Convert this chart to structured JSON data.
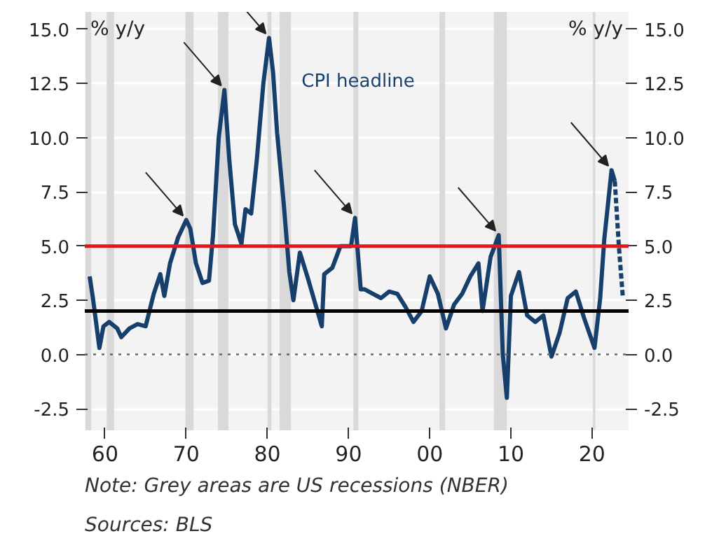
{
  "chart_data": {
    "type": "line",
    "ylabel": "% y/y",
    "y2label": "% y/y",
    "annotations": [
      "Note: Grey areas are US recessions (NBER)",
      "Sources: BLS"
    ],
    "xlim": [
      1957.5,
      2024.5
    ],
    "xticks": [
      {
        "value": 1960,
        "label": "60"
      },
      {
        "value": 1970,
        "label": "70"
      },
      {
        "value": 1980,
        "label": "80"
      },
      {
        "value": 1990,
        "label": "90"
      },
      {
        "value": 2000,
        "label": "00"
      },
      {
        "value": 2010,
        "label": "10"
      },
      {
        "value": 2020,
        "label": "20"
      }
    ],
    "ylim": [
      -3.5,
      15.8
    ],
    "yticks": [
      {
        "value": -2.5,
        "label": "-2.5"
      },
      {
        "value": 0,
        "label": "0.0"
      },
      {
        "value": 2.5,
        "label": "2.5"
      },
      {
        "value": 5,
        "label": "5.0"
      },
      {
        "value": 7.5,
        "label": "7.5"
      },
      {
        "value": 10,
        "label": "10.0"
      },
      {
        "value": 12.5,
        "label": "12.5"
      },
      {
        "value": 15,
        "label": "15.0"
      }
    ],
    "y2lim": [
      -3.5,
      15.8
    ],
    "y2ticks": [
      {
        "value": -2.5,
        "label": "-2.5"
      },
      {
        "value": 0,
        "label": "0.0"
      },
      {
        "value": 2.5,
        "label": "2.5"
      },
      {
        "value": 5,
        "label": "5.0"
      },
      {
        "value": 7.5,
        "label": "7.5"
      },
      {
        "value": 10,
        "label": "10.0"
      },
      {
        "value": 12.5,
        "label": "12.5"
      },
      {
        "value": 15,
        "label": "15.0"
      }
    ],
    "grid": "y",
    "series": [
      {
        "name": "CPI headline",
        "color": "#173f6b",
        "line_style": "solid",
        "x": [
          1958.1,
          1958.5,
          1959.3,
          1959.8,
          1960.5,
          1961.5,
          1962,
          1963,
          1964,
          1965,
          1966,
          1966.8,
          1967.3,
          1968,
          1969,
          1970,
          1970.5,
          1971.2,
          1972,
          1972.8,
          1973.3,
          1974,
          1974.7,
          1975.3,
          1976,
          1976.8,
          1977.3,
          1978,
          1978.7,
          1979.5,
          1980.2,
          1980.7,
          1981.2,
          1982,
          1982.7,
          1983.2,
          1984,
          1985,
          1986.7,
          1987,
          1988,
          1989,
          1990.3,
          1990.8,
          1991.5,
          1992,
          1993,
          1994,
          1995,
          1996,
          1997,
          1998,
          1999,
          2000,
          2001,
          2002,
          2003,
          2004,
          2005,
          2006,
          2006.5,
          2007.5,
          2008.5,
          2009,
          2009.5,
          2010,
          2011,
          2012,
          2013,
          2014,
          2015,
          2016,
          2017,
          2018,
          2019,
          2020.3,
          2021,
          2021.5,
          2022.4,
          2022.8
        ],
        "values": [
          3.6,
          2.6,
          0.3,
          1.3,
          1.5,
          1.2,
          0.8,
          1.2,
          1.4,
          1.3,
          2.8,
          3.7,
          2.7,
          4.2,
          5.4,
          6.2,
          5.8,
          4.2,
          3.3,
          3.4,
          5.5,
          10.0,
          12.2,
          9.0,
          6.0,
          5.1,
          6.7,
          6.5,
          9.0,
          12.5,
          14.6,
          13.0,
          10.2,
          7.0,
          3.8,
          2.5,
          4.7,
          3.5,
          1.3,
          3.7,
          4.0,
          5.0,
          5.0,
          6.3,
          3.0,
          3.0,
          2.8,
          2.6,
          2.9,
          2.8,
          2.2,
          1.5,
          2.0,
          3.6,
          2.8,
          1.2,
          2.3,
          2.8,
          3.6,
          4.2,
          2.0,
          4.5,
          5.5,
          0.0,
          -2.0,
          2.7,
          3.8,
          1.8,
          1.5,
          1.8,
          -0.1,
          1.0,
          2.6,
          2.9,
          1.7,
          0.3,
          2.6,
          5.3,
          8.5,
          8.0
        ]
      },
      {
        "color": "#173f6b",
        "line_style": "dashed",
        "x": [
          2022.8,
          2023.3,
          2023.8
        ],
        "values": [
          8.0,
          5.0,
          2.6
        ]
      }
    ],
    "ref_lines": [
      {
        "axis": "y",
        "value": 5,
        "color": "#e8141c",
        "line_style": "solid"
      },
      {
        "axis": "y",
        "value": 2,
        "color": "#000000",
        "line_style": "solid"
      },
      {
        "axis": "y",
        "value": 0,
        "color": "#666666",
        "line_style": "dotted"
      }
    ],
    "bands": [
      {
        "axis": "x",
        "from": 1957.6,
        "to": 1958.3,
        "color": "#d9d9d9"
      },
      {
        "axis": "x",
        "from": 1960.2,
        "to": 1961.1,
        "color": "#d9d9d9"
      },
      {
        "axis": "x",
        "from": 1969.9,
        "to": 1970.9,
        "color": "#d9d9d9"
      },
      {
        "axis": "x",
        "from": 1973.9,
        "to": 1975.2,
        "color": "#d9d9d9"
      },
      {
        "axis": "x",
        "from": 1980.0,
        "to": 1980.5,
        "color": "#d9d9d9"
      },
      {
        "axis": "x",
        "from": 1981.5,
        "to": 1982.9,
        "color": "#d9d9d9"
      },
      {
        "axis": "x",
        "from": 1990.6,
        "to": 1991.2,
        "color": "#d9d9d9"
      },
      {
        "axis": "x",
        "from": 2001.2,
        "to": 2001.9,
        "color": "#d9d9d9"
      },
      {
        "axis": "x",
        "from": 2007.9,
        "to": 2009.5,
        "color": "#d9d9d9"
      },
      {
        "axis": "x",
        "from": 2020.1,
        "to": 2020.4,
        "color": "#d9d9d9"
      }
    ]
  }
}
